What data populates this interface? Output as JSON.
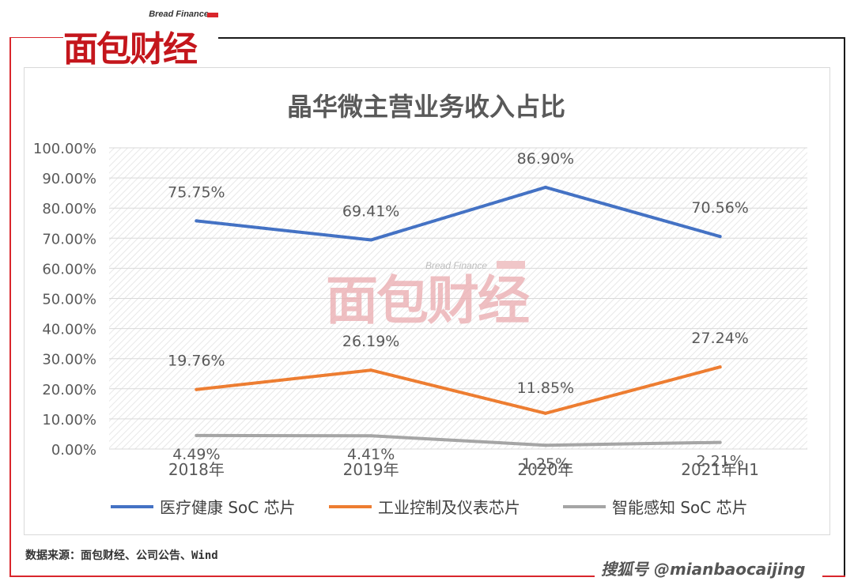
{
  "brand": {
    "name_en": "Bread Finance",
    "name_cn": "面包财经"
  },
  "colors": {
    "accent_red": "#d9262c",
    "series1": "#4472c4",
    "series2": "#ed7d31",
    "series3": "#a5a5a5"
  },
  "chart_data": {
    "type": "line",
    "title": "晶华微主营业务收入占比",
    "categories": [
      "2018年",
      "2019年",
      "2020年",
      "2021年H1"
    ],
    "ylim": [
      0,
      100
    ],
    "y_ticks": [
      "0.00%",
      "10.00%",
      "20.00%",
      "30.00%",
      "40.00%",
      "50.00%",
      "60.00%",
      "70.00%",
      "80.00%",
      "90.00%",
      "100.00%"
    ],
    "series": [
      {
        "name": "医疗健康 SoC 芯片",
        "values": [
          75.75,
          69.41,
          86.9,
          70.56
        ],
        "labels": [
          "75.75%",
          "69.41%",
          "86.90%",
          "70.56%"
        ]
      },
      {
        "name": "工业控制及仪表芯片",
        "values": [
          19.76,
          26.19,
          11.85,
          27.24
        ],
        "labels": [
          "19.76%",
          "26.19%",
          "11.85%",
          "27.24%"
        ]
      },
      {
        "name": "智能感知 SoC 芯片",
        "values": [
          4.49,
          4.41,
          1.25,
          2.21
        ],
        "labels": [
          "4.49%",
          "4.41%",
          "1.25%",
          "2.21%"
        ]
      }
    ],
    "grid": true,
    "legend_position": "bottom"
  },
  "source_text": "数据来源：面包财经、公司公告、Wind",
  "footer_mark": "搜狐号 @mianbaocaijing"
}
